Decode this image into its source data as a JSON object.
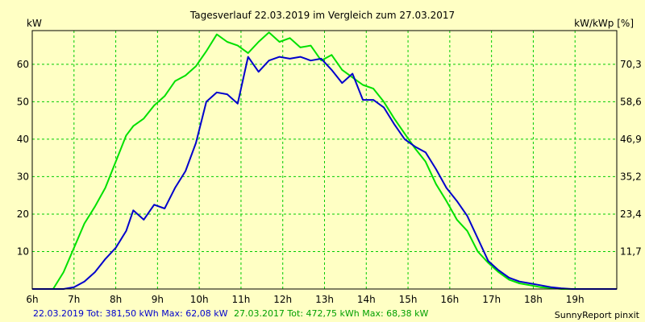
{
  "chart_data": {
    "type": "line",
    "title": "Tagesverlauf 22.03.2019 im Vergleich zum 27.03.2017",
    "ylabel": "kW",
    "y2label": "kW/kWp [%]",
    "x_tick_labels": [
      "6h",
      "7h",
      "8h",
      "9h",
      "10h",
      "11h",
      "12h",
      "13h",
      "14h",
      "15h",
      "16h",
      "17h",
      "18h",
      "19h"
    ],
    "y_tick_labels": [
      "10",
      "20",
      "30",
      "40",
      "50",
      "60"
    ],
    "y2_tick_labels": [
      "11,7",
      "23,4",
      "35,2",
      "46,9",
      "58,6",
      "70,3"
    ],
    "xlim": [
      6,
      20
    ],
    "ylim": [
      0,
      69
    ],
    "grid": true,
    "series": [
      {
        "name": "22.03.2019",
        "color": "#0000cc",
        "x": [
          6.0,
          6.5,
          6.75,
          7.0,
          7.25,
          7.5,
          7.75,
          8.0,
          8.25,
          8.42,
          8.67,
          8.92,
          9.17,
          9.42,
          9.67,
          9.92,
          10.17,
          10.42,
          10.67,
          10.92,
          11.17,
          11.42,
          11.67,
          11.92,
          12.17,
          12.42,
          12.67,
          12.92,
          13.17,
          13.42,
          13.67,
          13.92,
          14.17,
          14.42,
          14.67,
          14.92,
          15.17,
          15.42,
          15.67,
          15.92,
          16.17,
          16.42,
          16.67,
          16.92,
          17.17,
          17.42,
          17.67,
          17.92,
          18.17,
          18.42,
          18.67,
          18.92,
          19.17,
          19.5,
          20.0
        ],
        "values": [
          0,
          0,
          0,
          0.5,
          2,
          4.5,
          8,
          11,
          15.5,
          21,
          18.5,
          22.5,
          21.5,
          27,
          31.5,
          39,
          50,
          52.5,
          52,
          49.5,
          62,
          58,
          61,
          62,
          61.5,
          62,
          61,
          61.5,
          58.5,
          55,
          57.5,
          50.5,
          50.5,
          48.5,
          44,
          40,
          38,
          36.5,
          32,
          27,
          23.5,
          19.5,
          13.5,
          7.5,
          5,
          3,
          2,
          1.5,
          1,
          0.5,
          0.2,
          0,
          0,
          0,
          0
        ]
      },
      {
        "name": "27.03.2017",
        "color": "#00e000",
        "x": [
          6.0,
          6.5,
          6.75,
          7.0,
          7.25,
          7.5,
          7.75,
          8.0,
          8.25,
          8.42,
          8.67,
          8.92,
          9.17,
          9.42,
          9.67,
          9.92,
          10.17,
          10.42,
          10.67,
          10.92,
          11.17,
          11.42,
          11.67,
          11.92,
          12.17,
          12.42,
          12.67,
          12.92,
          13.17,
          13.42,
          13.67,
          13.92,
          14.17,
          14.42,
          14.67,
          14.92,
          15.17,
          15.42,
          15.67,
          15.92,
          16.17,
          16.42,
          16.67,
          16.92,
          17.17,
          17.42,
          17.67,
          17.92,
          18.17,
          18.42,
          18.67,
          18.92,
          19.17,
          19.5,
          20.0
        ],
        "values": [
          0,
          0,
          4.5,
          11,
          17.5,
          22,
          27,
          34,
          41,
          43.5,
          45.5,
          49,
          51.5,
          55.5,
          57,
          59.5,
          63.5,
          68,
          66,
          65,
          63,
          66,
          68.5,
          66,
          67,
          64.5,
          65,
          61,
          62.5,
          58.5,
          56.5,
          54.5,
          53.5,
          50,
          45.5,
          41.5,
          37.5,
          34,
          28,
          23.5,
          18.5,
          15.5,
          10,
          7,
          4.5,
          2.5,
          1.5,
          1,
          0.5,
          0.3,
          0,
          0,
          0,
          0,
          0
        ]
      }
    ]
  },
  "footer": {
    "series1_text": "22.03.2019 Tot: 381,50 kWh Max: 62,08 kW",
    "series2_text": "27.03.2017 Tot: 472,75 kWh Max: 68,38 kW",
    "credit": "SunnyReport pinxit"
  },
  "colors": {
    "background": "#ffffc4",
    "grid": "#00cc00",
    "axis": "#000000"
  }
}
